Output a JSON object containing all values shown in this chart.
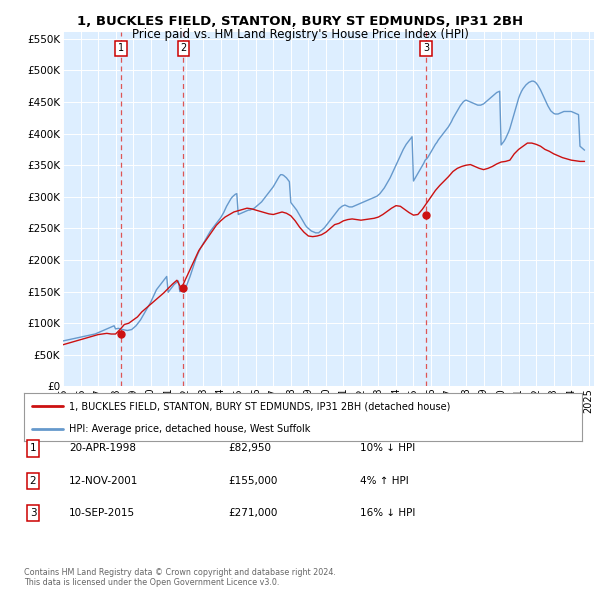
{
  "title": "1, BUCKLES FIELD, STANTON, BURY ST EDMUNDS, IP31 2BH",
  "subtitle": "Price paid vs. HM Land Registry's House Price Index (HPI)",
  "ylim": [
    0,
    560000
  ],
  "yticks": [
    0,
    50000,
    100000,
    150000,
    200000,
    250000,
    300000,
    350000,
    400000,
    450000,
    500000,
    550000
  ],
  "xlim_start": 1995.0,
  "xlim_end": 2025.3,
  "xtick_years": [
    1995,
    1996,
    1997,
    1998,
    1999,
    2000,
    2001,
    2002,
    2003,
    2004,
    2005,
    2006,
    2007,
    2008,
    2009,
    2010,
    2011,
    2012,
    2013,
    2014,
    2015,
    2016,
    2017,
    2018,
    2019,
    2020,
    2021,
    2022,
    2023,
    2024,
    2025
  ],
  "sale_dates": [
    1998.3,
    2001.87,
    2015.71
  ],
  "sale_prices": [
    82950,
    155000,
    271000
  ],
  "sale_labels": [
    "1",
    "2",
    "3"
  ],
  "legend_line1": "1, BUCKLES FIELD, STANTON, BURY ST EDMUNDS, IP31 2BH (detached house)",
  "legend_line2": "HPI: Average price, detached house, West Suffolk",
  "table_rows": [
    {
      "num": "1",
      "date": "20-APR-1998",
      "price": "£82,950",
      "hpi": "10% ↓ HPI"
    },
    {
      "num": "2",
      "date": "12-NOV-2001",
      "price": "£155,000",
      "hpi": "4% ↑ HPI"
    },
    {
      "num": "3",
      "date": "10-SEP-2015",
      "price": "£271,000",
      "hpi": "16% ↓ HPI"
    }
  ],
  "footer": "Contains HM Land Registry data © Crown copyright and database right 2024.\nThis data is licensed under the Open Government Licence v3.0.",
  "bg_color": "#ffffff",
  "chart_bg_color": "#ddeeff",
  "grid_color": "#ffffff",
  "hpi_color": "#6699cc",
  "sold_color": "#cc1111",
  "vline_color": "#dd5555",
  "sale_dot_color": "#cc1111",
  "hpi_x": [
    1995.0,
    1995.083,
    1995.167,
    1995.25,
    1995.333,
    1995.417,
    1995.5,
    1995.583,
    1995.667,
    1995.75,
    1995.833,
    1995.917,
    1996.0,
    1996.083,
    1996.167,
    1996.25,
    1996.333,
    1996.417,
    1996.5,
    1996.583,
    1996.667,
    1996.75,
    1996.833,
    1996.917,
    1997.0,
    1997.083,
    1997.167,
    1997.25,
    1997.333,
    1997.417,
    1997.5,
    1997.583,
    1997.667,
    1997.75,
    1997.833,
    1997.917,
    1998.0,
    1998.083,
    1998.167,
    1998.25,
    1998.333,
    1998.417,
    1998.5,
    1998.583,
    1998.667,
    1998.75,
    1998.833,
    1998.917,
    1999.0,
    1999.083,
    1999.167,
    1999.25,
    1999.333,
    1999.417,
    1999.5,
    1999.583,
    1999.667,
    1999.75,
    1999.833,
    1999.917,
    2000.0,
    2000.083,
    2000.167,
    2000.25,
    2000.333,
    2000.417,
    2000.5,
    2000.583,
    2000.667,
    2000.75,
    2000.833,
    2000.917,
    2001.0,
    2001.083,
    2001.167,
    2001.25,
    2001.333,
    2001.417,
    2001.5,
    2001.583,
    2001.667,
    2001.75,
    2001.833,
    2001.917,
    2002.0,
    2002.083,
    2002.167,
    2002.25,
    2002.333,
    2002.417,
    2002.5,
    2002.583,
    2002.667,
    2002.75,
    2002.833,
    2002.917,
    2003.0,
    2003.083,
    2003.167,
    2003.25,
    2003.333,
    2003.417,
    2003.5,
    2003.583,
    2003.667,
    2003.75,
    2003.833,
    2003.917,
    2004.0,
    2004.083,
    2004.167,
    2004.25,
    2004.333,
    2004.417,
    2004.5,
    2004.583,
    2004.667,
    2004.75,
    2004.833,
    2004.917,
    2005.0,
    2005.083,
    2005.167,
    2005.25,
    2005.333,
    2005.417,
    2005.5,
    2005.583,
    2005.667,
    2005.75,
    2005.833,
    2005.917,
    2006.0,
    2006.083,
    2006.167,
    2006.25,
    2006.333,
    2006.417,
    2006.5,
    2006.583,
    2006.667,
    2006.75,
    2006.833,
    2006.917,
    2007.0,
    2007.083,
    2007.167,
    2007.25,
    2007.333,
    2007.417,
    2007.5,
    2007.583,
    2007.667,
    2007.75,
    2007.833,
    2007.917,
    2008.0,
    2008.083,
    2008.167,
    2008.25,
    2008.333,
    2008.417,
    2008.5,
    2008.583,
    2008.667,
    2008.75,
    2008.833,
    2008.917,
    2009.0,
    2009.083,
    2009.167,
    2009.25,
    2009.333,
    2009.417,
    2009.5,
    2009.583,
    2009.667,
    2009.75,
    2009.833,
    2009.917,
    2010.0,
    2010.083,
    2010.167,
    2010.25,
    2010.333,
    2010.417,
    2010.5,
    2010.583,
    2010.667,
    2010.75,
    2010.833,
    2010.917,
    2011.0,
    2011.083,
    2011.167,
    2011.25,
    2011.333,
    2011.417,
    2011.5,
    2011.583,
    2011.667,
    2011.75,
    2011.833,
    2011.917,
    2012.0,
    2012.083,
    2012.167,
    2012.25,
    2012.333,
    2012.417,
    2012.5,
    2012.583,
    2012.667,
    2012.75,
    2012.833,
    2012.917,
    2013.0,
    2013.083,
    2013.167,
    2013.25,
    2013.333,
    2013.417,
    2013.5,
    2013.583,
    2013.667,
    2013.75,
    2013.833,
    2013.917,
    2014.0,
    2014.083,
    2014.167,
    2014.25,
    2014.333,
    2014.417,
    2014.5,
    2014.583,
    2014.667,
    2014.75,
    2014.833,
    2014.917,
    2015.0,
    2015.083,
    2015.167,
    2015.25,
    2015.333,
    2015.417,
    2015.5,
    2015.583,
    2015.667,
    2015.75,
    2015.833,
    2015.917,
    2016.0,
    2016.083,
    2016.167,
    2016.25,
    2016.333,
    2016.417,
    2016.5,
    2016.583,
    2016.667,
    2016.75,
    2016.833,
    2016.917,
    2017.0,
    2017.083,
    2017.167,
    2017.25,
    2017.333,
    2017.417,
    2017.5,
    2017.583,
    2017.667,
    2017.75,
    2017.833,
    2017.917,
    2018.0,
    2018.083,
    2018.167,
    2018.25,
    2018.333,
    2018.417,
    2018.5,
    2018.583,
    2018.667,
    2018.75,
    2018.833,
    2018.917,
    2019.0,
    2019.083,
    2019.167,
    2019.25,
    2019.333,
    2019.417,
    2019.5,
    2019.583,
    2019.667,
    2019.75,
    2019.833,
    2019.917,
    2020.0,
    2020.083,
    2020.167,
    2020.25,
    2020.333,
    2020.417,
    2020.5,
    2020.583,
    2020.667,
    2020.75,
    2020.833,
    2020.917,
    2021.0,
    2021.083,
    2021.167,
    2021.25,
    2021.333,
    2021.417,
    2021.5,
    2021.583,
    2021.667,
    2021.75,
    2021.833,
    2021.917,
    2022.0,
    2022.083,
    2022.167,
    2022.25,
    2022.333,
    2022.417,
    2022.5,
    2022.583,
    2022.667,
    2022.75,
    2022.833,
    2022.917,
    2023.0,
    2023.083,
    2023.167,
    2023.25,
    2023.333,
    2023.417,
    2023.5,
    2023.583,
    2023.667,
    2023.75,
    2023.833,
    2023.917,
    2024.0,
    2024.083,
    2024.167,
    2024.25,
    2024.333,
    2024.417,
    2024.5,
    2024.583,
    2024.667,
    2024.75
  ],
  "hpi_y": [
    72000,
    72500,
    73000,
    73500,
    74000,
    74500,
    75000,
    75500,
    76000,
    76500,
    77000,
    77500,
    78000,
    78500,
    79000,
    79500,
    80000,
    80500,
    81000,
    81500,
    82000,
    82500,
    83000,
    84000,
    85000,
    86000,
    87000,
    88000,
    89000,
    90000,
    91000,
    92000,
    93000,
    94000,
    95000,
    96000,
    91000,
    91500,
    92000,
    91000,
    90500,
    90000,
    89500,
    89000,
    88500,
    89000,
    89500,
    90000,
    92000,
    94000,
    96000,
    99000,
    102000,
    105000,
    109000,
    113000,
    117000,
    121000,
    125000,
    129000,
    133000,
    138000,
    143000,
    148000,
    153000,
    156000,
    159000,
    162000,
    165000,
    168000,
    171000,
    174000,
    149000,
    152000,
    155000,
    158000,
    161000,
    163000,
    165000,
    167000,
    150000,
    151000,
    153000,
    149000,
    156000,
    162000,
    168000,
    174000,
    181000,
    188000,
    195000,
    202000,
    208000,
    213000,
    218000,
    222000,
    226000,
    230000,
    234000,
    238000,
    242000,
    246000,
    249000,
    252000,
    255000,
    258000,
    261000,
    264000,
    267000,
    271000,
    275000,
    280000,
    285000,
    289000,
    293000,
    297000,
    300000,
    302000,
    304000,
    305000,
    272000,
    273000,
    274000,
    275000,
    276000,
    277000,
    278000,
    279000,
    279000,
    280000,
    281000,
    282000,
    284000,
    286000,
    288000,
    290000,
    292000,
    295000,
    298000,
    301000,
    304000,
    307000,
    310000,
    313000,
    316000,
    320000,
    324000,
    328000,
    332000,
    335000,
    335000,
    334000,
    332000,
    330000,
    327000,
    324000,
    291000,
    288000,
    285000,
    282000,
    279000,
    275000,
    271000,
    267000,
    263000,
    259000,
    255000,
    252000,
    250000,
    248000,
    246000,
    245000,
    244000,
    243000,
    243000,
    243000,
    245000,
    247000,
    249000,
    251000,
    254000,
    257000,
    260000,
    263000,
    266000,
    269000,
    272000,
    275000,
    278000,
    281000,
    283000,
    285000,
    286000,
    287000,
    286000,
    285000,
    284000,
    284000,
    284000,
    285000,
    286000,
    287000,
    288000,
    289000,
    290000,
    291000,
    292000,
    293000,
    294000,
    295000,
    296000,
    297000,
    298000,
    299000,
    300000,
    301000,
    303000,
    305000,
    308000,
    311000,
    314000,
    318000,
    322000,
    326000,
    330000,
    335000,
    340000,
    345000,
    350000,
    355000,
    360000,
    365000,
    370000,
    375000,
    379000,
    383000,
    386000,
    389000,
    392000,
    395000,
    325000,
    329000,
    333000,
    337000,
    341000,
    345000,
    349000,
    353000,
    358000,
    360000,
    363000,
    367000,
    371000,
    375000,
    379000,
    383000,
    386000,
    390000,
    393000,
    396000,
    399000,
    402000,
    405000,
    408000,
    411000,
    415000,
    419000,
    424000,
    428000,
    432000,
    436000,
    440000,
    444000,
    447000,
    450000,
    452000,
    453000,
    452000,
    451000,
    450000,
    449000,
    448000,
    447000,
    446000,
    445000,
    445000,
    445000,
    446000,
    447000,
    449000,
    451000,
    453000,
    455000,
    457000,
    459000,
    461000,
    463000,
    465000,
    466000,
    467000,
    382000,
    385000,
    388000,
    392000,
    397000,
    402000,
    408000,
    416000,
    424000,
    432000,
    440000,
    448000,
    456000,
    462000,
    467000,
    471000,
    474000,
    477000,
    479000,
    481000,
    482000,
    483000,
    483000,
    482000,
    480000,
    477000,
    473000,
    469000,
    464000,
    459000,
    454000,
    449000,
    444000,
    440000,
    436000,
    434000,
    432000,
    431000,
    431000,
    431000,
    432000,
    433000,
    434000,
    435000,
    435000,
    435000,
    435000,
    435000,
    435000,
    434000,
    433000,
    432000,
    431000,
    430000,
    380000,
    378000,
    376000,
    374000
  ],
  "sold_x": [
    1995.0,
    1995.25,
    1995.5,
    1995.75,
    1996.0,
    1996.25,
    1996.5,
    1996.75,
    1997.0,
    1997.25,
    1997.5,
    1997.75,
    1998.0,
    1998.25,
    1998.5,
    1998.75,
    1999.0,
    1999.25,
    1999.5,
    1999.75,
    2000.0,
    2000.25,
    2000.5,
    2000.75,
    2001.0,
    2001.25,
    2001.5,
    2001.75,
    2002.0,
    2002.25,
    2002.5,
    2002.75,
    2003.0,
    2003.25,
    2003.5,
    2003.75,
    2004.0,
    2004.25,
    2004.5,
    2004.75,
    2005.0,
    2005.25,
    2005.5,
    2005.75,
    2006.0,
    2006.25,
    2006.5,
    2006.75,
    2007.0,
    2007.25,
    2007.5,
    2007.75,
    2008.0,
    2008.25,
    2008.5,
    2008.75,
    2009.0,
    2009.25,
    2009.5,
    2009.75,
    2010.0,
    2010.25,
    2010.5,
    2010.75,
    2011.0,
    2011.25,
    2011.5,
    2011.75,
    2012.0,
    2012.25,
    2012.5,
    2012.75,
    2013.0,
    2013.25,
    2013.5,
    2013.75,
    2014.0,
    2014.25,
    2014.5,
    2014.75,
    2015.0,
    2015.25,
    2015.5,
    2015.75,
    2016.0,
    2016.25,
    2016.5,
    2016.75,
    2017.0,
    2017.25,
    2017.5,
    2017.75,
    2018.0,
    2018.25,
    2018.5,
    2018.75,
    2019.0,
    2019.25,
    2019.5,
    2019.75,
    2020.0,
    2020.25,
    2020.5,
    2020.75,
    2021.0,
    2021.25,
    2021.5,
    2021.75,
    2022.0,
    2022.25,
    2022.5,
    2022.75,
    2023.0,
    2023.25,
    2023.5,
    2023.75,
    2024.0,
    2024.25,
    2024.5,
    2024.75
  ],
  "sold_y": [
    66000,
    68000,
    70000,
    72000,
    74000,
    76000,
    78000,
    80000,
    82000,
    83000,
    84000,
    82950,
    82950,
    90000,
    98000,
    100000,
    105000,
    110000,
    118000,
    124000,
    130000,
    136000,
    142000,
    148000,
    155000,
    162000,
    168000,
    155000,
    170000,
    185000,
    200000,
    215000,
    225000,
    235000,
    245000,
    255000,
    262000,
    268000,
    272000,
    276000,
    278000,
    280000,
    282000,
    281000,
    279000,
    277000,
    275000,
    273000,
    272000,
    274000,
    276000,
    274000,
    270000,
    262000,
    252000,
    244000,
    238000,
    237000,
    238000,
    240000,
    244000,
    250000,
    256000,
    258000,
    262000,
    264000,
    265000,
    264000,
    263000,
    264000,
    265000,
    266000,
    268000,
    272000,
    277000,
    282000,
    286000,
    285000,
    280000,
    275000,
    271000,
    272000,
    280000,
    290000,
    300000,
    310000,
    318000,
    325000,
    332000,
    340000,
    345000,
    348000,
    350000,
    351000,
    348000,
    345000,
    343000,
    345000,
    348000,
    352000,
    355000,
    356000,
    358000,
    368000,
    375000,
    380000,
    385000,
    385000,
    383000,
    380000,
    375000,
    372000,
    368000,
    365000,
    362000,
    360000,
    358000,
    357000,
    356000,
    356000
  ]
}
